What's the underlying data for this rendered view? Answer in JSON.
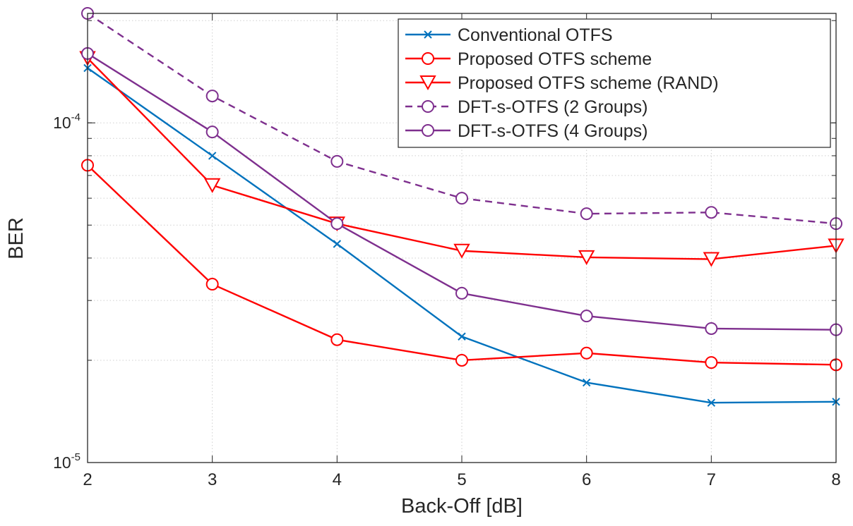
{
  "chart_data": {
    "type": "line",
    "title": "",
    "xlabel": "Back-Off [dB]",
    "ylabel": "BER",
    "x": [
      2,
      3,
      4,
      5,
      6,
      7,
      8
    ],
    "xlim": [
      2,
      8
    ],
    "ylim": [
      1e-05,
      0.00021
    ],
    "yscale": "log",
    "grid": true,
    "xticks": [
      {
        "value": 2,
        "label": "2"
      },
      {
        "value": 3,
        "label": "3"
      },
      {
        "value": 4,
        "label": "4"
      },
      {
        "value": 5,
        "label": "5"
      },
      {
        "value": 6,
        "label": "6"
      },
      {
        "value": 7,
        "label": "7"
      },
      {
        "value": 8,
        "label": "8"
      }
    ],
    "yticks": [
      {
        "value": 1e-05,
        "base": "10",
        "exp": "-5"
      },
      {
        "value": 0.0001,
        "base": "10",
        "exp": "-4"
      }
    ],
    "legend_position": "top-right",
    "series": [
      {
        "name": "Conventional OTFS",
        "color": "#0072BD",
        "marker": "x",
        "dash": false,
        "values": [
          0.000145,
          8e-05,
          4.4e-05,
          2.35e-05,
          1.72e-05,
          1.5e-05,
          1.51e-05
        ]
      },
      {
        "name": "Proposed OTFS scheme",
        "color": "#FF0000",
        "marker": "o",
        "dash": false,
        "values": [
          7.5e-05,
          3.35e-05,
          2.3e-05,
          2e-05,
          2.1e-05,
          1.97e-05,
          1.94e-05
        ]
      },
      {
        "name": "Proposed OTFS scheme (RAND)",
        "color": "#FF0000",
        "marker": "v",
        "dash": false,
        "values": [
          0.000155,
          6.55e-05,
          5.05e-05,
          4.2e-05,
          4.02e-05,
          3.97e-05,
          4.35e-05
        ]
      },
      {
        "name": "DFT-s-OTFS (2 Groups)",
        "color": "#7E2F8E",
        "marker": "o",
        "dash": true,
        "values": [
          0.00021,
          0.00012,
          7.7e-05,
          6e-05,
          5.4e-05,
          5.45e-05,
          5.05e-05
        ]
      },
      {
        "name": "DFT-s-OTFS (4 Groups)",
        "color": "#7E2F8E",
        "marker": "o",
        "dash": false,
        "values": [
          0.00016,
          9.4e-05,
          5.05e-05,
          3.15e-05,
          2.7e-05,
          2.48e-05,
          2.46e-05
        ]
      }
    ]
  }
}
